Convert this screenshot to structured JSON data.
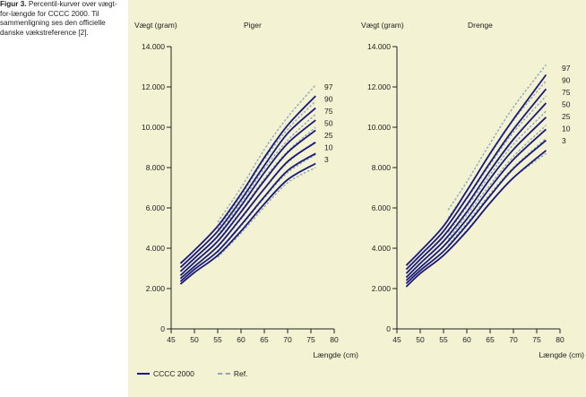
{
  "caption": {
    "figure_label": "Figur 3.",
    "text": "Percentil-kurver over vægt-for-længde for CCCC 2000. Til sammenligning ses den officielle danske vækstreference [2]."
  },
  "legend": {
    "items": [
      {
        "label": "CCCC 2000",
        "style": "solid",
        "color": "#1a1a7a"
      },
      {
        "label": "Ref.",
        "style": "dashed",
        "color": "#8fa7b8"
      }
    ]
  },
  "colors": {
    "background_panel": "#f3f2d3",
    "cccc_line": "#1a1a7a",
    "ref_line": "#8fa7b8",
    "axis": "#222222"
  },
  "chart_data": [
    {
      "type": "line",
      "title": "Piger",
      "xlabel": "Længde (cm)",
      "ylabel": "Vægt (gram)",
      "xlim": [
        45,
        80
      ],
      "ylim": [
        0,
        14000
      ],
      "xticks": [
        45,
        50,
        55,
        60,
        65,
        70,
        75,
        80
      ],
      "yticks": [
        0,
        2000,
        4000,
        6000,
        8000,
        10000,
        12000,
        14000
      ],
      "ytick_labels": [
        "0",
        "2.000",
        "4.000",
        "6.000",
        "8.000",
        "10.000",
        "12.000",
        "14.000"
      ],
      "grid": false,
      "percentile_labels": [
        "97",
        "90",
        "75",
        "50",
        "25",
        "10",
        "3"
      ],
      "x": [
        47,
        50,
        55,
        60,
        65,
        70,
        76
      ],
      "series": [
        {
          "name": "CCCC 2000 P97",
          "style": "solid",
          "values": [
            3250,
            3900,
            5100,
            6700,
            8500,
            10100,
            11550
          ]
        },
        {
          "name": "CCCC 2000 P90",
          "style": "solid",
          "values": [
            3050,
            3700,
            4850,
            6400,
            8100,
            9700,
            10950
          ]
        },
        {
          "name": "CCCC 2000 P75",
          "style": "solid",
          "values": [
            2850,
            3500,
            4600,
            6100,
            7750,
            9200,
            10350
          ]
        },
        {
          "name": "CCCC 2000 P50",
          "style": "solid",
          "values": [
            2650,
            3300,
            4350,
            5800,
            7350,
            8750,
            9850
          ]
        },
        {
          "name": "CCCC 2000 P25",
          "style": "solid",
          "values": [
            2500,
            3100,
            4100,
            5500,
            6950,
            8300,
            9250
          ]
        },
        {
          "name": "CCCC 2000 P10",
          "style": "solid",
          "values": [
            2350,
            2950,
            3850,
            5150,
            6550,
            7850,
            8700
          ]
        },
        {
          "name": "CCCC 2000 P3",
          "style": "solid",
          "values": [
            2220,
            2800,
            3650,
            4850,
            6200,
            7400,
            8200
          ]
        }
      ],
      "ref_x": [
        55,
        60,
        65,
        70,
        76
      ],
      "ref_series": [
        {
          "name": "Ref. P97",
          "style": "dashed",
          "values": [
            5300,
            7000,
            8900,
            10500,
            12100
          ]
        },
        {
          "name": "Ref. P90",
          "style": "dashed",
          "values": [
            4950,
            6600,
            8400,
            9900,
            11300
          ]
        },
        {
          "name": "Ref. P75",
          "style": "dashed",
          "values": [
            4650,
            6250,
            7950,
            9350,
            10650
          ]
        },
        {
          "name": "Ref. P50",
          "style": "dashed",
          "values": [
            4350,
            5850,
            7450,
            8800,
            10000
          ]
        },
        {
          "name": "Ref. P25",
          "style": "dashed",
          "values": [
            4050,
            5450,
            6950,
            8250,
            9300
          ]
        },
        {
          "name": "Ref. P10",
          "style": "dashed",
          "values": [
            3800,
            5100,
            6500,
            7750,
            8650
          ]
        },
        {
          "name": "Ref. P3",
          "style": "dashed",
          "values": [
            3550,
            4750,
            6050,
            7250,
            8000
          ]
        }
      ]
    },
    {
      "type": "line",
      "title": "Drenge",
      "xlabel": "Længde (cm)",
      "ylabel": "Vægt (gram)",
      "xlim": [
        45,
        80
      ],
      "ylim": [
        0,
        14000
      ],
      "xticks": [
        45,
        50,
        55,
        60,
        65,
        70,
        75,
        80
      ],
      "yticks": [
        0,
        2000,
        4000,
        6000,
        8000,
        10000,
        12000,
        14000
      ],
      "ytick_labels": [
        "0",
        "2.000",
        "4.000",
        "6.000",
        "8.000",
        "10.000",
        "12.000",
        "14.000"
      ],
      "grid": false,
      "percentile_labels": [
        "97",
        "90",
        "75",
        "50",
        "25",
        "10",
        "3"
      ],
      "x": [
        47,
        50,
        55,
        60,
        65,
        70,
        77
      ],
      "series": [
        {
          "name": "CCCC 2000 P97",
          "style": "solid",
          "values": [
            3150,
            3850,
            5100,
            6850,
            8700,
            10400,
            12600
          ]
        },
        {
          "name": "CCCC 2000 P90",
          "style": "solid",
          "values": [
            2950,
            3650,
            4850,
            6500,
            8250,
            9900,
            11900
          ]
        },
        {
          "name": "CCCC 2000 P75",
          "style": "solid",
          "values": [
            2750,
            3450,
            4600,
            6150,
            7850,
            9400,
            11200
          ]
        },
        {
          "name": "CCCC 2000 P50",
          "style": "solid",
          "values": [
            2550,
            3250,
            4350,
            5800,
            7450,
            8900,
            10500
          ]
        },
        {
          "name": "CCCC 2000 P25",
          "style": "solid",
          "values": [
            2400,
            3050,
            4100,
            5450,
            7000,
            8400,
            9900
          ]
        },
        {
          "name": "CCCC 2000 P10",
          "style": "solid",
          "values": [
            2250,
            2900,
            3850,
            5150,
            6600,
            7950,
            9350
          ]
        },
        {
          "name": "CCCC 2000 P3",
          "style": "solid",
          "values": [
            2090,
            2750,
            3650,
            4850,
            6250,
            7500,
            8850
          ]
        }
      ],
      "ref_x": [
        56,
        60,
        65,
        70,
        77
      ],
      "ref_series": [
        {
          "name": "Ref. P97",
          "style": "dashed",
          "values": [
            5900,
            7300,
            9200,
            11000,
            13100
          ]
        },
        {
          "name": "Ref. P90",
          "style": "dashed",
          "values": [
            5500,
            6850,
            8650,
            10350,
            12300
          ]
        },
        {
          "name": "Ref. P75",
          "style": "dashed",
          "values": [
            5150,
            6450,
            8150,
            9750,
            11550
          ]
        },
        {
          "name": "Ref. P50",
          "style": "dashed",
          "values": [
            4800,
            6050,
            7650,
            9150,
            10800
          ]
        },
        {
          "name": "Ref. P25",
          "style": "dashed",
          "values": [
            4450,
            5650,
            7150,
            8550,
            10100
          ]
        },
        {
          "name": "Ref. P10",
          "style": "dashed",
          "values": [
            4150,
            5250,
            6700,
            8000,
            9450
          ]
        },
        {
          "name": "Ref. P3",
          "style": "dashed",
          "values": [
            3850,
            4900,
            6250,
            7500,
            8700
          ]
        }
      ]
    }
  ]
}
